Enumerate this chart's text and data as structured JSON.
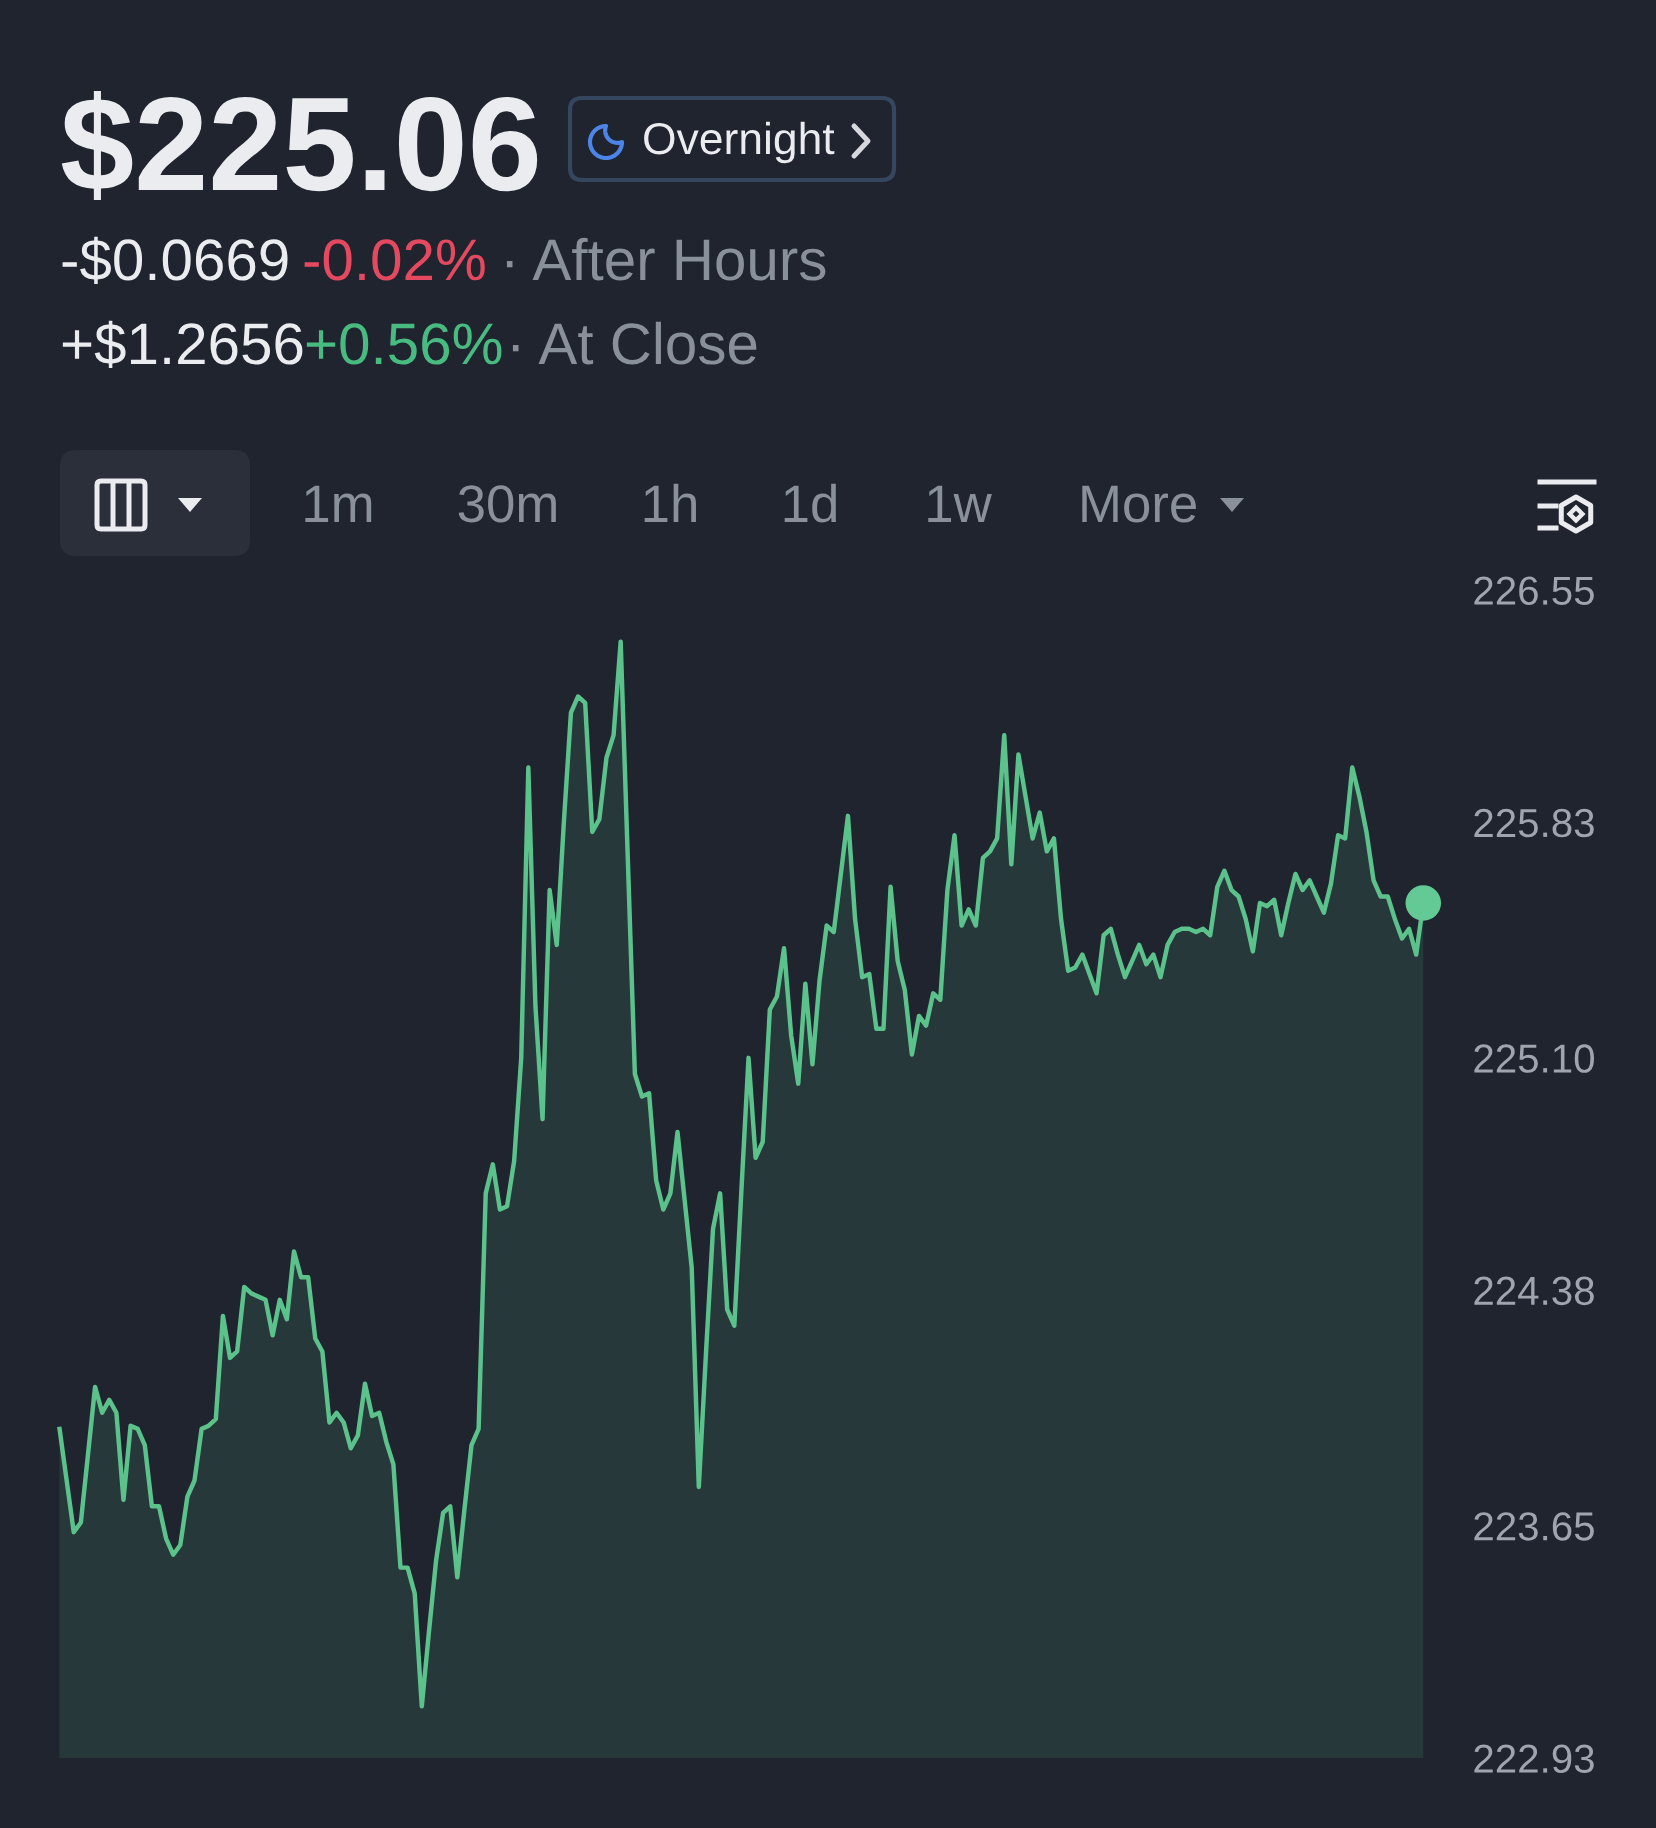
{
  "chart_data": {
    "type": "area",
    "title": "$225.06",
    "annotations": [
      "Overnight",
      "-$0.0669",
      "-0.02%",
      "· After Hours",
      "+$1.2656",
      "+0.56%",
      "· At Close",
      "1m",
      "30m",
      "1h",
      "1d",
      "1w",
      "More"
    ],
    "categories": [
      null,
      null,
      null,
      null,
      null,
      null,
      null,
      null,
      null,
      null,
      null,
      null,
      null,
      null,
      null,
      null,
      null,
      null,
      null,
      null,
      null,
      null,
      null,
      null,
      null,
      null,
      null,
      null,
      null,
      null,
      null,
      null,
      null,
      null,
      null,
      null,
      null,
      null,
      null,
      null,
      null,
      null,
      null,
      null,
      null,
      null,
      null,
      null,
      null,
      null,
      null,
      null,
      null,
      null,
      null,
      null,
      null,
      null,
      null,
      null,
      null,
      null,
      null,
      null,
      null,
      null,
      null,
      null,
      null,
      null,
      null,
      null,
      null,
      null,
      null,
      null,
      null,
      null,
      null,
      null,
      null,
      null,
      null,
      null,
      null,
      null,
      null,
      null,
      null,
      null,
      null,
      null,
      null,
      null,
      null,
      null,
      null,
      null,
      null,
      null,
      null,
      null,
      null,
      null,
      null,
      null,
      null,
      null,
      null,
      null,
      null,
      null,
      null,
      null,
      null,
      null,
      null,
      null,
      null,
      null,
      null,
      null,
      null,
      null,
      null,
      null,
      null,
      null,
      null,
      null,
      null,
      null,
      null,
      null,
      null,
      null,
      null,
      null,
      null,
      null,
      null,
      null,
      null,
      null,
      null,
      null,
      null,
      null,
      null,
      null,
      null,
      null,
      null,
      null,
      null,
      null,
      null,
      null,
      null,
      null,
      null,
      null,
      null,
      null,
      null,
      null,
      null,
      null,
      null,
      null,
      null,
      null,
      null,
      null,
      null,
      null,
      null,
      null,
      null,
      null,
      null,
      null,
      null,
      null,
      null,
      null,
      null,
      null,
      null,
      null,
      null,
      null,
      null
    ],
    "series": [
      {
        "color": "#5cc28c",
        "values": [
          223.95,
          223.79,
          223.63,
          223.66,
          223.87,
          224.08,
          224.0,
          224.04,
          224.0,
          223.73,
          223.96,
          223.95,
          223.9,
          223.71,
          223.71,
          223.61,
          223.56,
          223.59,
          223.74,
          223.79,
          223.95,
          223.96,
          223.98,
          224.3,
          224.17,
          224.19,
          224.39,
          224.37,
          224.36,
          224.35,
          224.24,
          224.35,
          224.29,
          224.5,
          224.42,
          224.42,
          224.23,
          224.19,
          223.97,
          224.0,
          223.97,
          223.89,
          223.93,
          224.09,
          223.99,
          224.0,
          223.91,
          223.84,
          223.52,
          223.52,
          223.44,
          223.09,
          223.32,
          223.54,
          223.69,
          223.71,
          223.49,
          223.7,
          223.9,
          223.95,
          224.68,
          224.77,
          224.63,
          224.64,
          224.78,
          225.1,
          226.0,
          225.26,
          224.91,
          225.62,
          225.45,
          225.83,
          226.17,
          226.22,
          226.2,
          225.8,
          225.84,
          226.03,
          226.1,
          226.39,
          225.72,
          225.05,
          224.98,
          224.99,
          224.72,
          224.63,
          224.68,
          224.87,
          224.66,
          224.45,
          223.77,
          224.18,
          224.57,
          224.68,
          224.32,
          224.27,
          224.69,
          225.1,
          224.79,
          224.84,
          225.25,
          225.29,
          225.44,
          225.17,
          225.02,
          225.33,
          225.08,
          225.34,
          225.51,
          225.49,
          225.67,
          225.85,
          225.53,
          225.35,
          225.36,
          225.19,
          225.19,
          225.63,
          225.4,
          225.31,
          225.11,
          225.23,
          225.2,
          225.3,
          225.28,
          225.62,
          225.79,
          225.51,
          225.56,
          225.51,
          225.72,
          225.74,
          225.78,
          226.1,
          225.7,
          226.04,
          225.91,
          225.78,
          225.86,
          225.74,
          225.78,
          225.53,
          225.37,
          225.38,
          225.42,
          225.36,
          225.3,
          225.48,
          225.5,
          225.42,
          225.35,
          225.4,
          225.45,
          225.39,
          225.42,
          225.35,
          225.45,
          225.49,
          225.5,
          225.5,
          225.49,
          225.5,
          225.48,
          225.63,
          225.68,
          225.62,
          225.6,
          225.53,
          225.43,
          225.58,
          225.57,
          225.59,
          225.48,
          225.58,
          225.67,
          225.62,
          225.65,
          225.6,
          225.55,
          225.64,
          225.79,
          225.78,
          226.0,
          225.91,
          225.8,
          225.65,
          225.6,
          225.6,
          225.53,
          225.47,
          225.5,
          225.42,
          225.58
        ]
      },
      {
        "type": "scatter",
        "color": "#63c995",
        "marker": "circle",
        "values": [
          null,
          null,
          null,
          null,
          null,
          null,
          null,
          null,
          null,
          null,
          null,
          null,
          null,
          null,
          null,
          null,
          null,
          null,
          null,
          null,
          null,
          null,
          null,
          null,
          null,
          null,
          null,
          null,
          null,
          null,
          null,
          null,
          null,
          null,
          null,
          null,
          null,
          null,
          null,
          null,
          null,
          null,
          null,
          null,
          null,
          null,
          null,
          null,
          null,
          null,
          null,
          null,
          null,
          null,
          null,
          null,
          null,
          null,
          null,
          null,
          null,
          null,
          null,
          null,
          null,
          null,
          null,
          null,
          null,
          null,
          null,
          null,
          null,
          null,
          null,
          null,
          null,
          null,
          null,
          null,
          null,
          null,
          null,
          null,
          null,
          null,
          null,
          null,
          null,
          null,
          null,
          null,
          null,
          null,
          null,
          null,
          null,
          null,
          null,
          null,
          null,
          null,
          null,
          null,
          null,
          null,
          null,
          null,
          null,
          null,
          null,
          null,
          null,
          null,
          null,
          null,
          null,
          null,
          null,
          null,
          null,
          null,
          null,
          null,
          null,
          null,
          null,
          null,
          null,
          null,
          null,
          null,
          null,
          null,
          null,
          null,
          null,
          null,
          null,
          null,
          null,
          null,
          null,
          null,
          null,
          null,
          null,
          null,
          null,
          null,
          null,
          null,
          null,
          null,
          null,
          null,
          null,
          null,
          null,
          null,
          null,
          null,
          null,
          null,
          null,
          null,
          null,
          null,
          null,
          null,
          null,
          null,
          null,
          null,
          null,
          null,
          null,
          null,
          null,
          null,
          null,
          null,
          null,
          null,
          null,
          null,
          null,
          null,
          null,
          null,
          null,
          null,
          225.58
        ]
      }
    ],
    "ylim": [
      222.93,
      226.55
    ],
    "yticks": [
      222.93,
      223.65,
      224.38,
      {
        "value": 225.1,
        "label": "225.10"
      },
      225.83,
      226.55
    ],
    "tick_labels": "y"
  }
}
